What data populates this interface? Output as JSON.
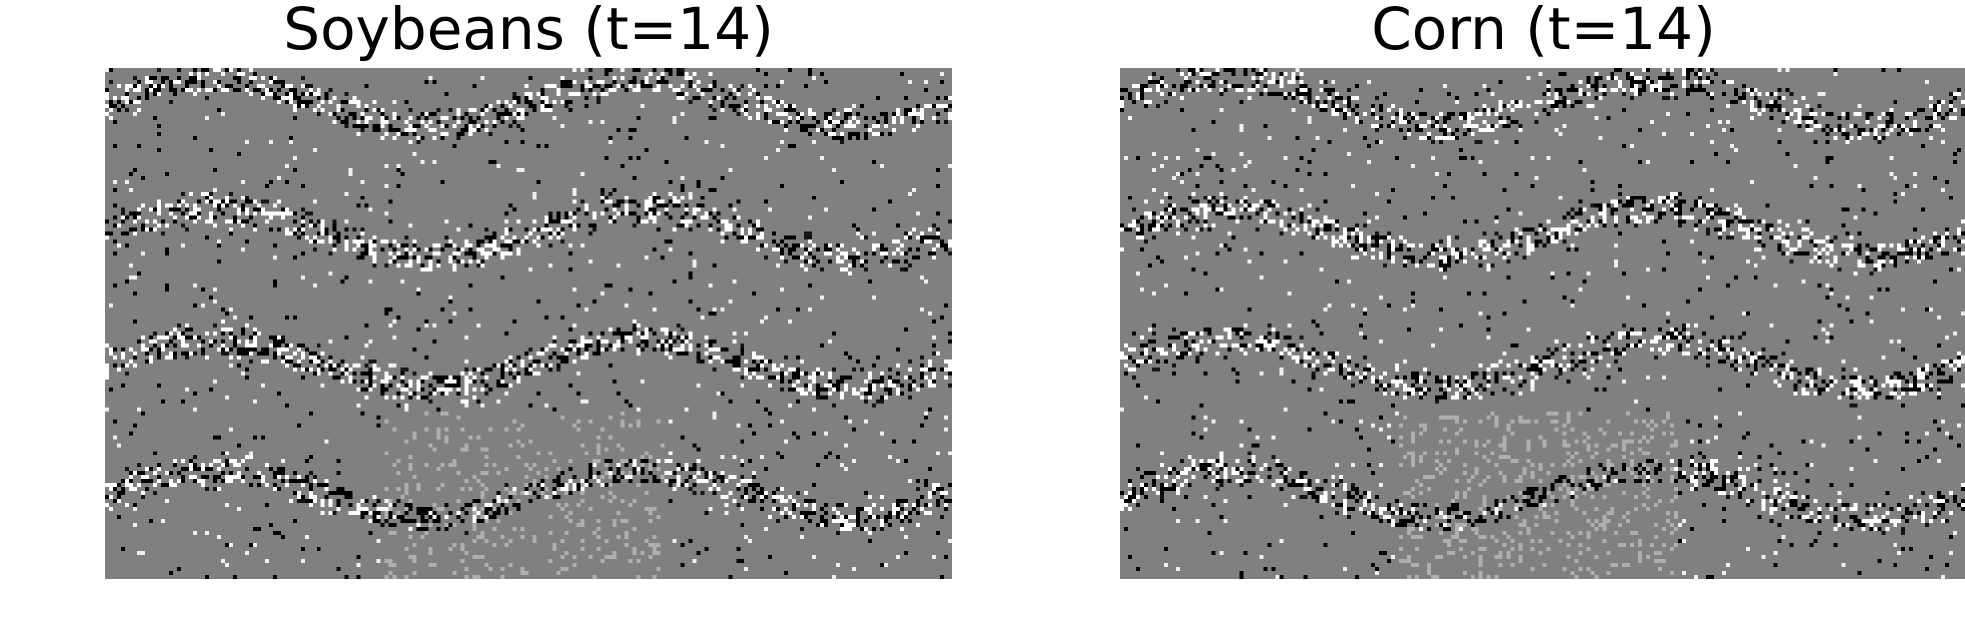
{
  "panels": [
    {
      "title": "Soybeans (t=14)"
    },
    {
      "title": "Corn (t=14)"
    }
  ]
}
